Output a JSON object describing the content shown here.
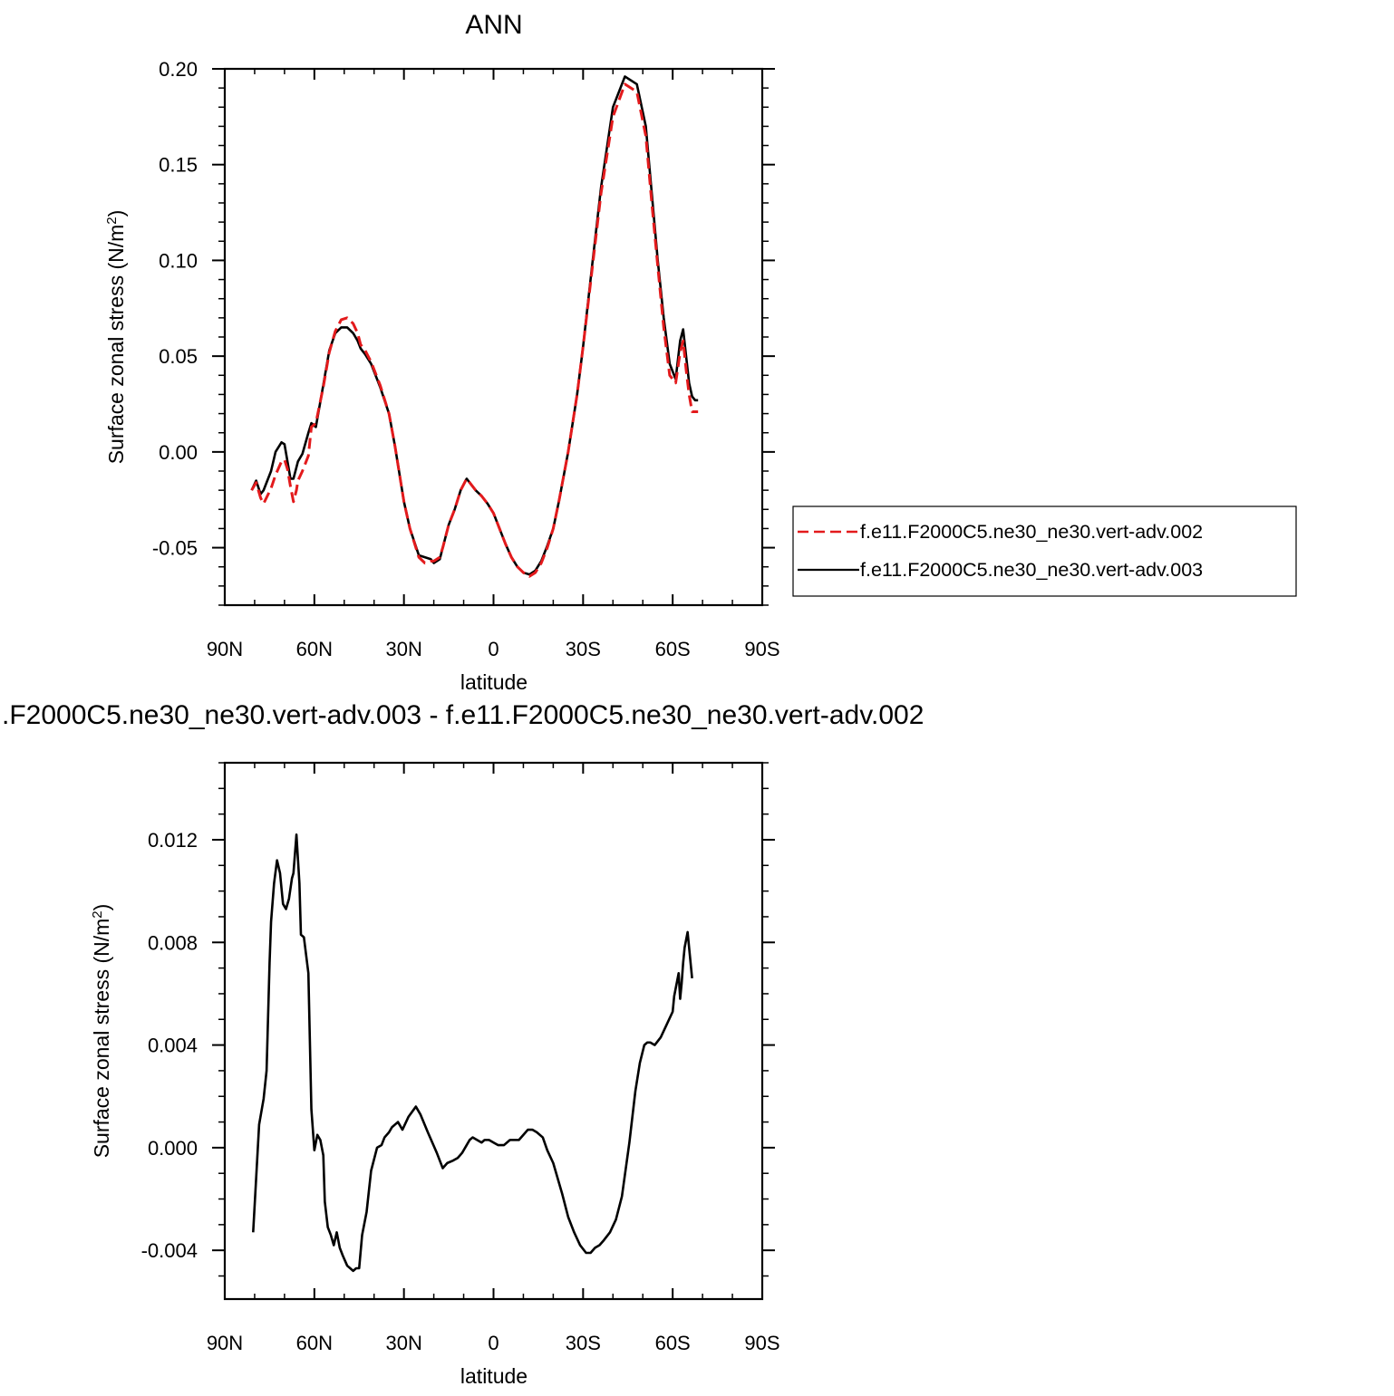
{
  "chart_data": [
    {
      "type": "line",
      "title": "ANN",
      "xlabel": "latitude",
      "ylabel": "Surface zonal stress (N/m",
      "ylabel_sup": "2",
      "ylabel_end": ")",
      "xlim": [
        90,
        -90
      ],
      "ylim": [
        -0.08,
        0.2
      ],
      "x_ticks": [
        90,
        60,
        30,
        0,
        -30,
        -60,
        -90
      ],
      "x_tick_labels": [
        "90N",
        "60N",
        "30N",
        "0",
        "30S",
        "60S",
        "90S"
      ],
      "y_ticks": [
        -0.05,
        0.0,
        0.05,
        0.1,
        0.15,
        0.2
      ],
      "y_tick_labels": [
        "-0.05",
        "0.00",
        "0.05",
        "0.10",
        "0.15",
        "0.20"
      ],
      "legend_position": "right-bottom",
      "grid": false,
      "series": [
        {
          "name": "f.e11.F2000C5.ne30_ne30.vert-adv.002",
          "color": "#e31a1c",
          "dash": "dashed",
          "x": [
            81,
            79.5,
            78,
            77,
            74.5,
            73,
            71,
            70,
            69,
            68,
            67,
            66,
            65.5,
            64,
            62,
            61,
            59.5,
            57,
            55,
            53,
            51,
            49,
            47,
            45.5,
            44.5,
            43,
            41,
            38,
            35,
            33,
            30,
            28,
            25,
            23,
            21,
            20,
            18,
            17,
            15,
            13,
            11,
            9,
            6,
            4,
            2,
            0,
            -2,
            -4,
            -6,
            -8,
            -10,
            -12,
            -14,
            -16,
            -18,
            -20,
            -22,
            -25,
            -28,
            -30,
            -33,
            -36,
            -40,
            -44,
            -48,
            -51,
            -53,
            -55,
            -57,
            -59,
            -61,
            -62.5,
            -63.5,
            -64.5,
            -65.5,
            -66.5,
            -67.5,
            -68.5
          ],
          "y": [
            -0.02,
            -0.016,
            -0.024,
            -0.027,
            -0.019,
            -0.012,
            -0.005,
            -0.004,
            -0.009,
            -0.018,
            -0.026,
            -0.02,
            -0.015,
            -0.01,
            -0.002,
            0.013,
            0.015,
            0.034,
            0.052,
            0.063,
            0.069,
            0.07,
            0.067,
            0.062,
            0.056,
            0.053,
            0.047,
            0.035,
            0.02,
            0.003,
            -0.026,
            -0.04,
            -0.055,
            -0.058,
            -0.057,
            -0.057,
            -0.055,
            -0.05,
            -0.038,
            -0.03,
            -0.02,
            -0.014,
            -0.02,
            -0.023,
            -0.027,
            -0.032,
            -0.04,
            -0.048,
            -0.055,
            -0.06,
            -0.063,
            -0.065,
            -0.063,
            -0.058,
            -0.05,
            -0.04,
            -0.025,
            0.0,
            0.03,
            0.055,
            0.095,
            0.135,
            0.175,
            0.192,
            0.188,
            0.165,
            0.13,
            0.097,
            0.065,
            0.04,
            0.036,
            0.052,
            0.058,
            0.043,
            0.03,
            0.021,
            0.021,
            0.021
          ]
        },
        {
          "name": "f.e11.F2000C5.ne30_ne30.vert-adv.003",
          "color": "#000000",
          "dash": "solid",
          "x": [
            81,
            79.5,
            78,
            77,
            74.5,
            73,
            71,
            70,
            69,
            68,
            67,
            66,
            65.5,
            64,
            62,
            61,
            59.5,
            57,
            55,
            53,
            51,
            49,
            47,
            45.5,
            44.5,
            43,
            41,
            38,
            35,
            33,
            30,
            28,
            25,
            23,
            21,
            20,
            18,
            17,
            15,
            13,
            11,
            9,
            6,
            4,
            2,
            0,
            -2,
            -4,
            -6,
            -8,
            -10,
            -12,
            -14,
            -16,
            -18,
            -20,
            -22,
            -25,
            -28,
            -30,
            -33,
            -36,
            -40,
            -44,
            -48,
            -51,
            -53,
            -55,
            -57,
            -59,
            -61,
            -62.5,
            -63.5,
            -64.5,
            -65.5,
            -66.5,
            -67.5,
            -68.5
          ],
          "y": [
            -0.02,
            -0.015,
            -0.022,
            -0.02,
            -0.01,
            0.0,
            0.005,
            0.004,
            -0.005,
            -0.014,
            -0.014,
            -0.008,
            -0.005,
            -0.001,
            0.01,
            0.015,
            0.013,
            0.035,
            0.053,
            0.062,
            0.065,
            0.065,
            0.062,
            0.058,
            0.054,
            0.051,
            0.046,
            0.034,
            0.02,
            0.003,
            -0.026,
            -0.04,
            -0.054,
            -0.055,
            -0.056,
            -0.058,
            -0.056,
            -0.05,
            -0.038,
            -0.03,
            -0.02,
            -0.014,
            -0.02,
            -0.023,
            -0.027,
            -0.032,
            -0.04,
            -0.048,
            -0.055,
            -0.06,
            -0.063,
            -0.064,
            -0.062,
            -0.057,
            -0.049,
            -0.04,
            -0.025,
            0.0,
            0.03,
            0.055,
            0.097,
            0.138,
            0.18,
            0.196,
            0.192,
            0.17,
            0.135,
            0.1,
            0.07,
            0.046,
            0.038,
            0.058,
            0.064,
            0.05,
            0.036,
            0.029,
            0.027,
            0.027
          ]
        }
      ]
    },
    {
      "type": "line",
      "title": ".F2000C5.ne30_ne30.vert-adv.003 - f.e11.F2000C5.ne30_ne30.vert-adv.002",
      "xlabel": "latitude",
      "ylabel": "Surface zonal stress (N/m",
      "ylabel_sup": "2",
      "ylabel_end": ")",
      "xlim": [
        90,
        -90
      ],
      "ylim": [
        -0.0059,
        0.015
      ],
      "x_ticks": [
        90,
        60,
        30,
        0,
        -30,
        -60,
        -90
      ],
      "x_tick_labels": [
        "90N",
        "60N",
        "30N",
        "0",
        "30S",
        "60S",
        "90S"
      ],
      "y_ticks": [
        -0.004,
        0.0,
        0.004,
        0.008,
        0.012
      ],
      "y_tick_labels": [
        "-0.004",
        "0.000",
        "0.004",
        "0.008",
        "0.012"
      ],
      "grid": false,
      "series": [
        {
          "color": "#000000",
          "dash": "solid",
          "x": [
            80.5,
            78.5,
            77,
            76,
            75,
            74.5,
            73.5,
            72.5,
            71.5,
            70.5,
            69.5,
            68.5,
            67.5,
            67,
            66,
            65,
            64.5,
            63.5,
            62,
            61,
            60,
            59,
            58,
            57,
            56.5,
            55.5,
            54.5,
            53.5,
            52.5,
            51.5,
            50.5,
            49,
            47,
            46,
            45,
            44,
            42.5,
            41,
            39,
            37.5,
            36.5,
            35,
            34,
            32,
            30.5,
            28.5,
            26,
            24.5,
            22,
            19,
            17,
            15.5,
            13.5,
            12,
            10.5,
            9,
            8,
            7,
            5.5,
            4,
            3,
            1.5,
            0,
            -1.5,
            -3.5,
            -5.5,
            -7,
            -8.5,
            -10,
            -11.5,
            -13,
            -14.5,
            -16.5,
            -18,
            -20,
            -23,
            -25,
            -27,
            -29,
            -31,
            -32.5,
            -34,
            -35.5,
            -37,
            -39,
            -41,
            -43,
            -45.5,
            -47.5,
            -49,
            -50.5,
            -51.5,
            -52.5,
            -54,
            -56,
            -58,
            -60,
            -60.5,
            -61.5,
            -62,
            -62.5,
            -63,
            -63.5,
            -64,
            -65,
            -66.5
          ],
          "y": [
            -0.0033,
            0.0009,
            0.0019,
            0.003,
            0.0072,
            0.0088,
            0.0103,
            0.0112,
            0.0107,
            0.0095,
            0.0093,
            0.0097,
            0.0105,
            0.0107,
            0.0122,
            0.0103,
            0.0083,
            0.0082,
            0.0068,
            0.0015,
            -0.0001,
            0.0005,
            0.0003,
            -0.0003,
            -0.0021,
            -0.0031,
            -0.0034,
            -0.0038,
            -0.0033,
            -0.0039,
            -0.0042,
            -0.0046,
            -0.0048,
            -0.0047,
            -0.0047,
            -0.0034,
            -0.0025,
            -0.0009,
            0.0,
            0.0001,
            0.0004,
            0.0006,
            0.0008,
            0.001,
            0.0007,
            0.0012,
            0.0016,
            0.0013,
            0.0006,
            -0.0002,
            -0.0008,
            -0.0006,
            -0.0005,
            -0.0004,
            -0.0002,
            0.0001,
            0.0003,
            0.0004,
            0.0003,
            0.0002,
            0.0003,
            0.0003,
            0.0002,
            0.0001,
            0.0001,
            0.0003,
            0.0003,
            0.0003,
            0.0005,
            0.0007,
            0.0007,
            0.0006,
            0.0004,
            -0.0001,
            -0.0006,
            -0.0018,
            -0.0027,
            -0.0033,
            -0.0038,
            -0.0041,
            -0.0041,
            -0.0039,
            -0.0038,
            -0.0036,
            -0.0033,
            -0.0028,
            -0.0019,
            0.0002,
            0.0022,
            0.0033,
            0.004,
            0.0041,
            0.0041,
            0.004,
            0.0043,
            0.0048,
            0.0053,
            0.0059,
            0.0065,
            0.0068,
            0.0058,
            0.0064,
            0.0072,
            0.0078,
            0.0084,
            0.0066
          ]
        }
      ]
    },
    {
      "legend_entries": [
        "f.e11.F2000C5.ne30_ne30.vert-adv.002",
        "f.e11.F2000C5.ne30_ne30.vert-adv.003"
      ]
    }
  ]
}
